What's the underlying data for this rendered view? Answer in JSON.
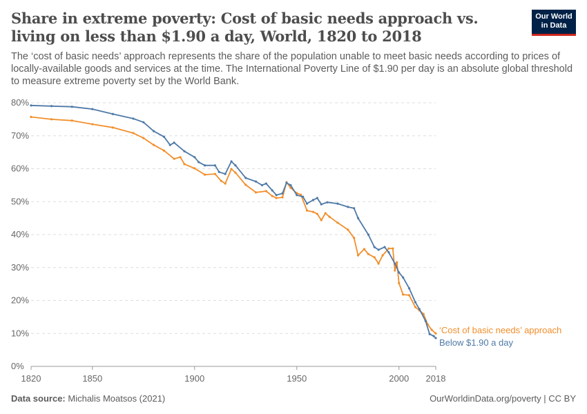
{
  "header": {
    "title": "Share in extreme poverty: Cost of basic needs approach vs. living on less than $1.90 a day, World, 1820 to 2018",
    "subtitle": "The ‘cost of basic needs’ approach represents the share of the population unable to meet basic needs according to prices of locally-available goods and services at the time. The International Poverty Line of $1.90 per day is an absolute global threshold to measure extreme poverty set by the World Bank.",
    "logo": "Our World in Data"
  },
  "footer": {
    "source_label": "Data source:",
    "source": "Michalis Moatsos (2021)",
    "link": "OurWorldinData.org/poverty | CC BY"
  },
  "chart_data": {
    "type": "line",
    "title": "",
    "xlabel": "",
    "ylabel": "",
    "xlim": [
      1820,
      2018
    ],
    "ylim": [
      0,
      80
    ],
    "grid": "horizontal dashed",
    "legend": "inline-right",
    "xticks": [
      "1820",
      "1850",
      "1900",
      "1950",
      "2000",
      "2018"
    ],
    "yticks": [
      "0%",
      "10%",
      "20%",
      "30%",
      "40%",
      "50%",
      "60%",
      "70%",
      "80%"
    ],
    "series": [
      {
        "name": "‘Cost of basic needs’ approach",
        "color": "#f28e2b",
        "x": [
          1820,
          1830,
          1840,
          1850,
          1860,
          1870,
          1875,
          1880,
          1885,
          1890,
          1893,
          1895,
          1900,
          1905,
          1910,
          1913,
          1915,
          1918,
          1920,
          1925,
          1930,
          1935,
          1938,
          1940,
          1943,
          1945,
          1947,
          1950,
          1952,
          1955,
          1958,
          1960,
          1962,
          1964,
          1966,
          1970,
          1975,
          1978,
          1980,
          1983,
          1985,
          1988,
          1990,
          1992,
          1995,
          1997,
          1998,
          1999,
          2000,
          2002,
          2005,
          2008,
          2010,
          2012,
          2014,
          2016,
          2018
        ],
        "y": [
          75.7,
          75,
          74.6,
          73.5,
          72.5,
          70.8,
          69.3,
          67.2,
          65.5,
          63,
          63.5,
          61.4,
          60.1,
          58.2,
          58.4,
          56.3,
          55.5,
          59.9,
          58.8,
          55.1,
          52.8,
          53.2,
          51.7,
          51.1,
          51.3,
          55.9,
          54.2,
          52.6,
          52.1,
          47.3,
          46.9,
          46.3,
          44.4,
          46.5,
          45.4,
          43.6,
          41.5,
          39,
          33.7,
          35.6,
          34.1,
          33.1,
          31.2,
          33.7,
          35.8,
          35.8,
          29.1,
          31.6,
          25.3,
          21.8,
          21.6,
          18,
          17,
          15.9,
          12.8,
          11.1,
          10
        ]
      },
      {
        "name": "Below $1.90 a day",
        "color": "#4e79a7",
        "x": [
          1820,
          1830,
          1840,
          1850,
          1860,
          1870,
          1875,
          1880,
          1885,
          1888,
          1890,
          1895,
          1900,
          1902,
          1905,
          1910,
          1912,
          1915,
          1918,
          1920,
          1925,
          1930,
          1933,
          1935,
          1938,
          1940,
          1943,
          1945,
          1947,
          1950,
          1953,
          1955,
          1958,
          1960,
          1962,
          1965,
          1970,
          1975,
          1978,
          1980,
          1985,
          1988,
          1990,
          1993,
          1995,
          1998,
          2000,
          2002,
          2005,
          2008,
          2010,
          2013,
          2015,
          2017,
          2018
        ],
        "y": [
          79.2,
          79,
          78.8,
          78.1,
          76.6,
          75.2,
          74.1,
          71.4,
          69.7,
          67.2,
          67.9,
          65.3,
          63.5,
          62,
          61,
          61,
          59,
          58.4,
          62.2,
          61,
          57.2,
          56.1,
          55,
          55.5,
          53.4,
          52,
          52.5,
          55.7,
          55,
          52,
          51.5,
          49.4,
          50.5,
          51.1,
          49.2,
          49.8,
          49.4,
          48.4,
          48,
          45,
          40,
          36.2,
          35.4,
          36.2,
          34.6,
          31.2,
          28.5,
          27,
          23.7,
          19.5,
          17.4,
          13.8,
          9.8,
          9.2,
          8.6
        ]
      }
    ]
  }
}
